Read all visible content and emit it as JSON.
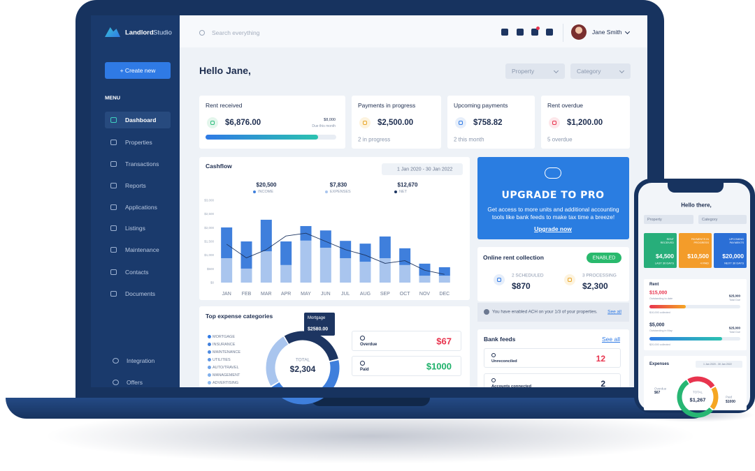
{
  "sidebar": {
    "logo": {
      "bold": "Landlord",
      "light": "Studio"
    },
    "create_button": "+ Create new",
    "menu_heading": "MENU",
    "items": [
      "Dashboard",
      "Properties",
      "Transactions",
      "Reports",
      "Applications",
      "Listings",
      "Maintenance",
      "Contacts",
      "Documents"
    ],
    "bottom_items": [
      "Integration",
      "Offers"
    ]
  },
  "topbar": {
    "search_placeholder": "Search everything",
    "user_name": "Jane Smith"
  },
  "greeting": "Hello Jane,",
  "filters": [
    "Property",
    "Category"
  ],
  "stats": [
    {
      "label": "Rent received",
      "value": "$6,876.00",
      "target": "$8,000",
      "target_note": "Due this month",
      "progress": 86
    },
    {
      "label": "Payments in progress",
      "value": "$2,500.00",
      "note": "2 in progress"
    },
    {
      "label": "Upcoming payments",
      "value": "$758.82",
      "note": "2 this month"
    },
    {
      "label": "Rent overdue",
      "value": "$1,200.00",
      "note": "5 overdue"
    }
  ],
  "cashflow": {
    "title": "Cashflow",
    "date_range": "1 Jan 2020 - 30 Jan 2022",
    "summary": [
      {
        "value": "$20,500",
        "label": "INCOME",
        "color": "#3f7fdc"
      },
      {
        "value": "$7,830",
        "label": "EXPENSES",
        "color": "#a9c5ee"
      },
      {
        "value": "$12,670",
        "label": "NET",
        "color": "#1d3561"
      }
    ],
    "chart": {
      "type": "bar",
      "stacked": true,
      "categories": [
        "JAN",
        "FEB",
        "MAR",
        "APR",
        "MAY",
        "JUN",
        "JUL",
        "AUG",
        "SEP",
        "OCT",
        "NOV",
        "DEC"
      ],
      "series": [
        {
          "color": "#a9c5ee",
          "values": [
            890,
            510,
            1140,
            640,
            1530,
            1270,
            890,
            760,
            890,
            640,
            250,
            250
          ]
        },
        {
          "color": "#3f7fdc",
          "values": [
            1120,
            990,
            1150,
            860,
            530,
            630,
            630,
            660,
            790,
            610,
            440,
            310
          ]
        },
        {
          "type": "line",
          "color": "#1d3561",
          "values": [
            1400,
            900,
            1200,
            1700,
            1800,
            1500,
            1200,
            1000,
            700,
            800,
            450,
            300
          ]
        }
      ],
      "ylim": [
        0,
        3000
      ],
      "yticks": [
        {
          "value": 0,
          "label": "$0"
        },
        {
          "value": 500,
          "label": "$500"
        },
        {
          "value": 1000,
          "label": "$1,000"
        },
        {
          "value": 1500,
          "label": "$1,500"
        },
        {
          "value": 2000,
          "label": "$2,000"
        },
        {
          "value": 2500,
          "label": "$2,500"
        },
        {
          "value": 3000,
          "label": "$3,000"
        }
      ]
    }
  },
  "expenses": {
    "title": "Top expense categories",
    "categories": [
      "MORTGAGE",
      "INSURANCE",
      "MAINTENANCE",
      "UTILITIES",
      "AUTO/TRAVEL",
      "MANAGEMENT",
      "ADVERTISING"
    ],
    "donut": {
      "segments": [
        {
          "color": "#1d3561",
          "value": 30
        },
        {
          "color": "#3f7fdc",
          "value": 45
        },
        {
          "color": "#a9c5ee",
          "value": 25
        }
      ],
      "total_label": "TOTAL",
      "total": "$2,304"
    },
    "tooltip": {
      "label": "Mortgage",
      "value": "$2580.00"
    },
    "status": [
      {
        "label": "Overdue",
        "value": "$67",
        "color": "#e8344e"
      },
      {
        "label": "Paid",
        "value": "$1000",
        "color": "#1eb16a"
      }
    ]
  },
  "upgrade": {
    "title": "UPGRADE TO PRO",
    "text": "Get access to more units and additional accounting tools like bank feeds to make tax time a breeze!",
    "link": "Upgrade now"
  },
  "rent_collection": {
    "title": "Online rent collection",
    "badge": "ENABLED",
    "items": [
      {
        "label": "2 SCHEDULED",
        "value": "$870"
      },
      {
        "label": "3 PROCESSING",
        "value": "$2,300"
      }
    ],
    "note": "You have enabled ACH on your 1/3 of your properties.",
    "link": "See all"
  },
  "bank_feeds": {
    "title": "Bank feeds",
    "link": "See all",
    "rows": [
      {
        "label": "Unreconciled",
        "value": 12,
        "color": "#e8344e"
      },
      {
        "label": "Accounts connected",
        "value": 2,
        "color": "#1d2d4f"
      }
    ]
  },
  "phone": {
    "greeting": "Hello there,",
    "filters": [
      "Property",
      "Category"
    ],
    "cards": [
      {
        "label": "RENT RECEIVED",
        "value": "$4,500",
        "note": "LAST 30 DAYS",
        "color": "#27ae7a"
      },
      {
        "label": "PAYMENTS IN PROGRESS",
        "value": "$10,500",
        "note": "4 PAID",
        "color": "#f39c2a"
      },
      {
        "label": "UPCOMING PAYMENTS",
        "value": "$20,000",
        "note": "NEXT 30 DAYS",
        "color": "#2b6fd6"
      }
    ],
    "rent": {
      "title": "Rent",
      "rows": [
        {
          "amount": "$15,000",
          "amount_note": "Outstanding to date",
          "total": "$25,000",
          "total_note": "Total Due",
          "progress": 40,
          "collected": "$10,000 collected"
        },
        {
          "amount": "$5,000",
          "amount_note": "Outstanding in May",
          "total": "$25,000",
          "total_note": "Total Due",
          "progress": 80,
          "collected": "$20,000 collected"
        }
      ]
    },
    "expenses": {
      "title": "Expenses",
      "date_range": "1 Jan 2020 - 30 Jan 2022",
      "overdue_label": "Overdue",
      "overdue": "$67",
      "total_label": "TOTAL",
      "total": "$1,267",
      "paid_label": "Paid",
      "paid": "$1000",
      "segments": [
        {
          "color": "#e8344e",
          "value": 25
        },
        {
          "color": "#f5a623",
          "value": 20
        },
        {
          "color": "#27b673",
          "value": 55
        }
      ]
    }
  }
}
